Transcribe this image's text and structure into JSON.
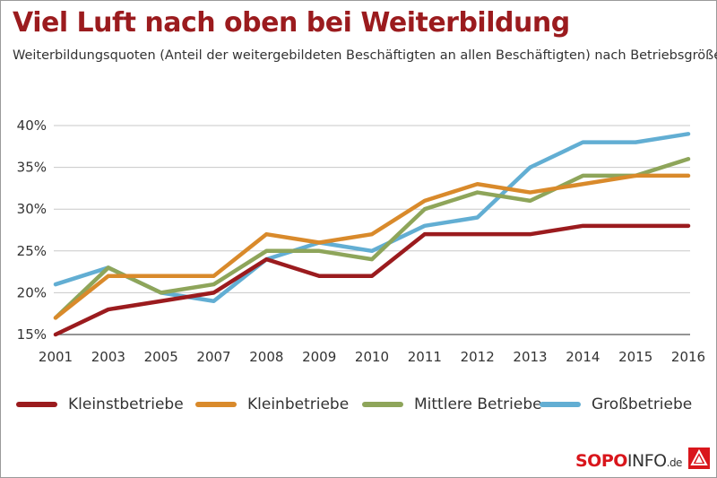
{
  "header": {
    "title": "Viel Luft nach oben bei Weiterbildung",
    "subtitle": "Weiterbildungsquoten (Anteil der weitergebildeten Beschäftigten an allen Beschäftigten) nach Betriebsgröße"
  },
  "chart_data": {
    "type": "line",
    "categories": [
      "2001",
      "2003",
      "2005",
      "2007",
      "2008",
      "2009",
      "2010",
      "2011",
      "2012",
      "2013",
      "2014",
      "2015",
      "2016"
    ],
    "yticks": [
      "15%",
      "20%",
      "25%",
      "30%",
      "35%",
      "40%"
    ],
    "ytick_values": [
      15,
      20,
      25,
      30,
      35,
      40
    ],
    "ylim": [
      15,
      40
    ],
    "grid": true,
    "legend_position": "bottom",
    "series": [
      {
        "name": "Kleinstbetriebe",
        "color": "#9b1b1e",
        "values": [
          15,
          18,
          19,
          20,
          24,
          22,
          22,
          27,
          27,
          27,
          28,
          28,
          28
        ]
      },
      {
        "name": "Kleinbetriebe",
        "color": "#d98a2b",
        "values": [
          17,
          22,
          22,
          22,
          27,
          26,
          27,
          31,
          33,
          32,
          33,
          34,
          34
        ]
      },
      {
        "name": "Mittlere Betriebe",
        "color": "#8ea55a",
        "values": [
          17,
          23,
          20,
          21,
          25,
          25,
          24,
          30,
          32,
          31,
          34,
          34,
          36
        ]
      },
      {
        "name": "Großbetriebe",
        "color": "#62aed3",
        "values": [
          21,
          23,
          20,
          19,
          24,
          26,
          25,
          28,
          29,
          35,
          38,
          38,
          39
        ]
      }
    ]
  },
  "legend": {
    "items": [
      {
        "label": "Kleinstbetriebe",
        "color": "#9b1b1e"
      },
      {
        "label": "Kleinbetriebe",
        "color": "#d98a2b"
      },
      {
        "label": "Mittlere Betriebe",
        "color": "#8ea55a"
      },
      {
        "label": "Großbetriebe",
        "color": "#62aed3"
      }
    ]
  },
  "footer": {
    "logo_sopo": "SOPO",
    "logo_info": "INFO",
    "logo_de": ".de"
  }
}
